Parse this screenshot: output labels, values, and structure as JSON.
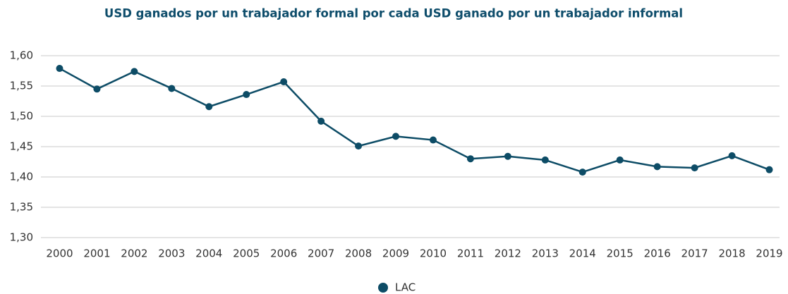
{
  "chart_data": {
    "type": "line",
    "title": "USD ganados por un trabajador formal por cada USD ganado por un trabajador informal",
    "categories": [
      "2000",
      "2001",
      "2002",
      "2003",
      "2004",
      "2005",
      "2006",
      "2007",
      "2008",
      "2009",
      "2010",
      "2011",
      "2012",
      "2013",
      "2014",
      "2015",
      "2016",
      "2017",
      "2018",
      "2019"
    ],
    "series": [
      {
        "name": "LAC",
        "color": "#0d4c66",
        "values": [
          1.579,
          1.545,
          1.574,
          1.546,
          1.516,
          1.536,
          1.557,
          1.492,
          1.451,
          1.467,
          1.461,
          1.43,
          1.434,
          1.428,
          1.408,
          1.428,
          1.417,
          1.415,
          1.435,
          1.412
        ]
      }
    ],
    "ylim": [
      1.3,
      1.6
    ],
    "yticks": [
      {
        "value": 1.3,
        "label": "1,30"
      },
      {
        "value": 1.35,
        "label": "1,35"
      },
      {
        "value": 1.4,
        "label": "1,40"
      },
      {
        "value": 1.45,
        "label": "1,45"
      },
      {
        "value": 1.5,
        "label": "1,50"
      },
      {
        "value": 1.55,
        "label": "1,55"
      },
      {
        "value": 1.6,
        "label": "1,60"
      }
    ],
    "grid": true,
    "legend": "bottom"
  }
}
